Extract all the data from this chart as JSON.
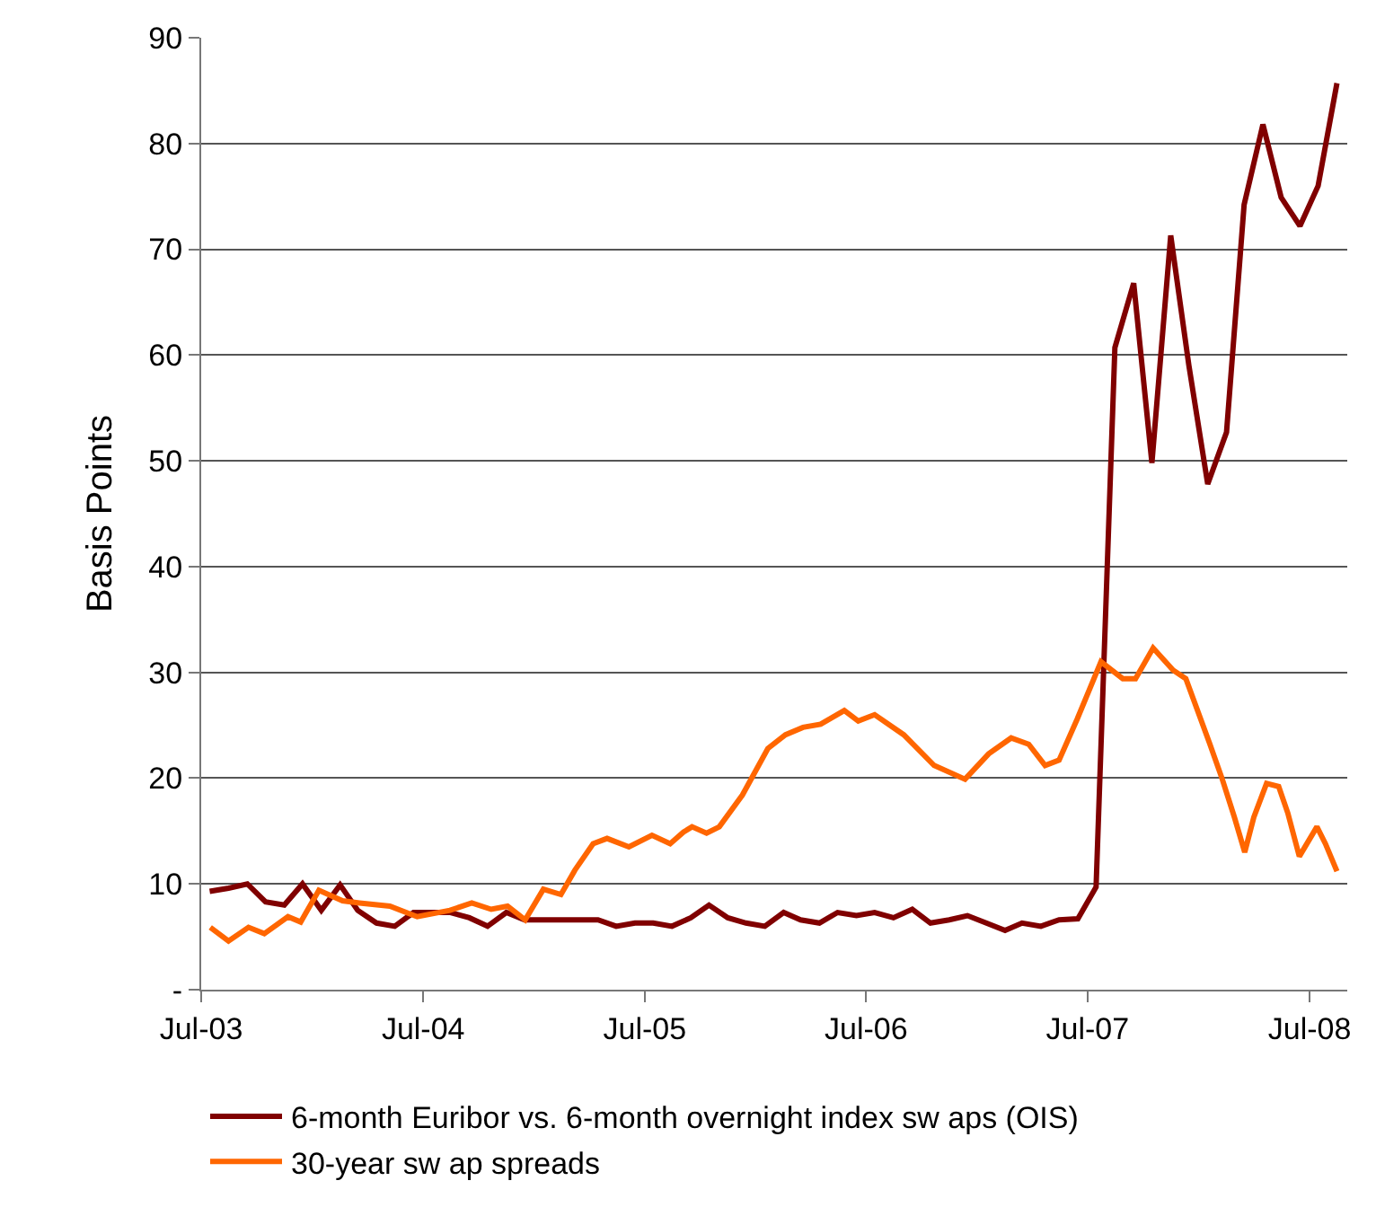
{
  "chart_data": {
    "type": "line",
    "ylabel": "Basis Points",
    "xlim": [
      "2003-07-01",
      "2008-09-01"
    ],
    "xticks": [
      {
        "value": "2003-07-01",
        "label": "Jul-03"
      },
      {
        "value": "2004-07-01",
        "label": "Jul-04"
      },
      {
        "value": "2005-07-01",
        "label": "Jul-05"
      },
      {
        "value": "2006-07-01",
        "label": "Jul-06"
      },
      {
        "value": "2007-07-01",
        "label": "Jul-07"
      },
      {
        "value": "2008-07-01",
        "label": "Jul-08"
      }
    ],
    "ylim": [
      0,
      90
    ],
    "yticks": [
      {
        "value": 0,
        "label": "-"
      },
      10,
      20,
      30,
      40,
      50,
      60,
      70,
      80,
      90
    ],
    "grid": "y",
    "legend": "bottom",
    "marker": "none",
    "line_style": "solid",
    "series": [
      {
        "name": "6-month Euribor vs. 6-month overnight index sw aps (OIS)",
        "color": "#800000",
        "x": [
          "2003-07-15",
          "2003-08-15",
          "2003-09-15",
          "2003-10-15",
          "2003-11-15",
          "2003-12-15",
          "2004-01-15",
          "2004-02-15",
          "2004-03-15",
          "2004-04-15",
          "2004-05-15",
          "2004-06-15",
          "2004-07-15",
          "2004-08-15",
          "2004-09-15",
          "2004-10-15",
          "2004-11-15",
          "2004-12-15",
          "2005-01-15",
          "2005-02-15",
          "2005-03-15",
          "2005-04-15",
          "2005-05-15",
          "2005-06-15",
          "2005-07-15",
          "2005-08-15",
          "2005-09-15",
          "2005-10-15",
          "2005-11-15",
          "2005-12-15",
          "2006-01-15",
          "2006-02-15",
          "2006-03-15",
          "2006-04-15",
          "2006-05-15",
          "2006-06-15",
          "2006-07-15",
          "2006-08-15",
          "2006-09-15",
          "2006-10-15",
          "2006-11-15",
          "2006-12-15",
          "2007-01-15",
          "2007-02-15",
          "2007-03-15",
          "2007-04-15",
          "2007-05-15",
          "2007-06-15",
          "2007-07-15",
          "2007-08-15",
          "2007-09-15",
          "2007-10-15",
          "2007-11-15",
          "2007-12-15",
          "2008-01-15",
          "2008-02-15",
          "2008-03-15",
          "2008-04-15",
          "2008-05-15",
          "2008-06-15",
          "2008-07-15",
          "2008-08-15"
        ],
        "values": [
          9.3,
          9.6,
          10,
          8.3,
          8.0,
          10,
          7.5,
          9.9,
          7.5,
          6.3,
          6.0,
          7.3,
          7.3,
          7.3,
          6.8,
          6.0,
          7.3,
          6.6,
          6.6,
          6.6,
          6.6,
          6.6,
          6.0,
          6.3,
          6.3,
          6.0,
          6.8,
          8.0,
          6.8,
          6.3,
          6.0,
          7.3,
          6.6,
          6.3,
          7.3,
          7.0,
          7.3,
          6.8,
          7.6,
          6.3,
          6.6,
          7.0,
          6.3,
          5.6,
          6.3,
          6.0,
          6.6,
          6.7,
          9.7,
          60.7,
          66.8,
          49.8,
          71.3,
          59,
          47.8,
          52.7,
          74.2,
          81.8,
          74.9,
          72.2,
          76,
          85.7
        ]
      },
      {
        "name": "30-year sw ap spreads",
        "color": "#ff6600",
        "x": [
          "2003-07-16",
          "2003-08-15",
          "2003-09-17",
          "2003-10-13",
          "2003-11-21",
          "2003-12-12",
          "2004-01-11",
          "2004-02-19",
          "2004-03-18",
          "2004-05-07",
          "2004-06-21",
          "2004-08-14",
          "2004-09-19",
          "2004-10-21",
          "2004-11-17",
          "2004-12-16",
          "2005-01-15",
          "2005-02-13",
          "2005-03-08",
          "2005-04-07",
          "2005-04-30",
          "2005-06-05",
          "2005-07-13",
          "2005-08-12",
          "2005-09-03",
          "2005-09-17",
          "2005-10-11",
          "2005-11-01",
          "2005-12-09",
          "2006-01-20",
          "2006-02-18",
          "2006-03-19",
          "2006-04-17",
          "2006-05-26",
          "2006-06-18",
          "2006-07-15",
          "2006-09-01",
          "2006-10-21",
          "2006-12-11",
          "2007-01-19",
          "2007-02-25",
          "2007-03-26",
          "2007-04-22",
          "2007-05-15",
          "2007-06-14",
          "2007-07-23",
          "2007-08-28",
          "2007-09-18",
          "2007-10-17",
          "2007-11-19",
          "2007-12-10",
          "2008-01-18",
          "2008-02-08",
          "2008-02-28",
          "2008-03-16",
          "2008-03-31",
          "2008-04-21",
          "2008-05-11",
          "2008-05-26",
          "2008-06-14",
          "2008-07-13",
          "2008-07-27",
          "2008-08-15"
        ],
        "values": [
          5.9,
          4.6,
          5.9,
          5.3,
          6.9,
          6.4,
          9.4,
          8.4,
          8.2,
          7.9,
          6.9,
          7.5,
          8.2,
          7.6,
          7.9,
          6.6,
          9.5,
          9.0,
          11.3,
          13.8,
          14.3,
          13.5,
          14.6,
          13.8,
          14.9,
          15.4,
          14.8,
          15.4,
          18.4,
          22.8,
          24.1,
          24.8,
          25.1,
          26.4,
          25.4,
          26.0,
          24.1,
          21.2,
          19.9,
          22.3,
          23.8,
          23.2,
          21.2,
          21.7,
          25.6,
          31.0,
          29.4,
          29.4,
          32.3,
          30.2,
          29.4,
          23.3,
          19.9,
          16.3,
          13.0,
          16.3,
          19.5,
          19.2,
          16.7,
          12.6,
          15.4,
          13.8,
          11.2
        ]
      }
    ]
  }
}
